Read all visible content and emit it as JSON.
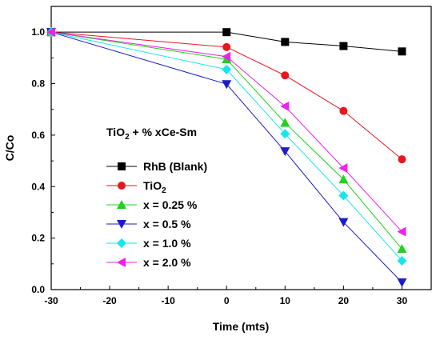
{
  "chart_data": {
    "type": "line",
    "x": [
      -30,
      0,
      10,
      20,
      30
    ],
    "xlabel": "Time (mts)",
    "ylabel": "C/Co",
    "xlim": [
      -30,
      35
    ],
    "ylim": [
      0,
      1.1
    ],
    "xticks": [
      -30,
      -20,
      -10,
      0,
      10,
      20,
      30
    ],
    "yticks": [
      0.0,
      0.2,
      0.4,
      0.6,
      0.8,
      1.0
    ],
    "xtick_labels": [
      "-30",
      "-20",
      "-10",
      "0",
      "10",
      "20",
      "30"
    ],
    "ytick_labels": [
      "0.0",
      "0.2",
      "0.4",
      "0.6",
      "0.8",
      "1.0"
    ],
    "grid": false,
    "legend_position": "center-left",
    "annotation": {
      "main": "TiO",
      "sub": "2",
      "rest": " + % xCe-Sm"
    },
    "series": [
      {
        "name": "RhB (Blank)",
        "name_main": "RhB (Blank)",
        "name_sub": "",
        "color": "#000000",
        "marker": "square",
        "values": [
          1.0,
          1.0,
          0.962,
          0.946,
          0.925
        ]
      },
      {
        "name": "TiO2",
        "name_main": "TiO",
        "name_sub": "2",
        "color": "#e8161f",
        "marker": "circle",
        "values": [
          1.0,
          0.942,
          0.832,
          0.694,
          0.506
        ]
      },
      {
        "name": "x = 0.25 %",
        "name_main": "x = 0.25 %",
        "name_sub": "",
        "color": "#1ed21e",
        "marker": "triangle-up",
        "values": [
          1.0,
          0.895,
          0.648,
          0.428,
          0.158
        ]
      },
      {
        "name": "x = 0.5 %",
        "name_main": "x = 0.5 %",
        "name_sub": "",
        "color": "#1c1cc8",
        "marker": "triangle-down",
        "values": [
          1.0,
          0.798,
          0.537,
          0.262,
          0.028
        ]
      },
      {
        "name": "x = 1.0 %",
        "name_main": "x = 1.0 %",
        "name_sub": "",
        "color": "#16e6f0",
        "marker": "diamond",
        "values": [
          1.0,
          0.855,
          0.605,
          0.365,
          0.112
        ]
      },
      {
        "name": "x = 2.0 %",
        "name_main": "x = 2.0 %",
        "name_sub": "",
        "color": "#ee20ee",
        "marker": "triangle-left",
        "values": [
          1.0,
          0.905,
          0.712,
          0.472,
          0.225
        ]
      }
    ]
  }
}
